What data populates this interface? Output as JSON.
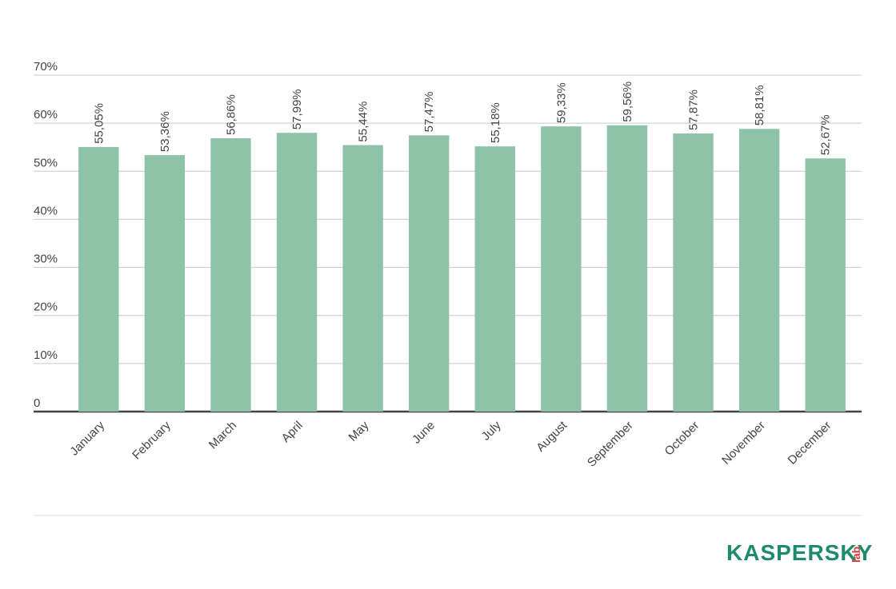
{
  "chart_data": {
    "type": "bar",
    "categories": [
      "January",
      "February",
      "March",
      "April",
      "May",
      "June",
      "July",
      "August",
      "September",
      "October",
      "November",
      "December"
    ],
    "values": [
      55.05,
      53.36,
      56.86,
      57.99,
      55.44,
      57.47,
      55.18,
      59.33,
      59.56,
      57.87,
      58.81,
      52.67
    ],
    "value_labels": [
      "55,05%",
      "53,36%",
      "56,86%",
      "57,99%",
      "55,44%",
      "57,47%",
      "55,18%",
      "59,33%",
      "59,56%",
      "57,87%",
      "58,81%",
      "52,67%"
    ],
    "color": "#8ec3a7",
    "ylim": [
      0,
      70
    ],
    "yticks": [
      0,
      {
        "value": 10,
        "label": "10%"
      },
      {
        "value": 20,
        "label": "20%"
      },
      {
        "value": 30,
        "label": "30%"
      },
      {
        "value": 40,
        "label": "40%"
      },
      {
        "value": 50,
        "label": "50%"
      },
      {
        "value": 60,
        "label": "60%"
      },
      {
        "value": 70,
        "label": "70%"
      }
    ],
    "grid": true
  },
  "logo": {
    "name": "KASPERSKY",
    "suffix": "lab"
  }
}
